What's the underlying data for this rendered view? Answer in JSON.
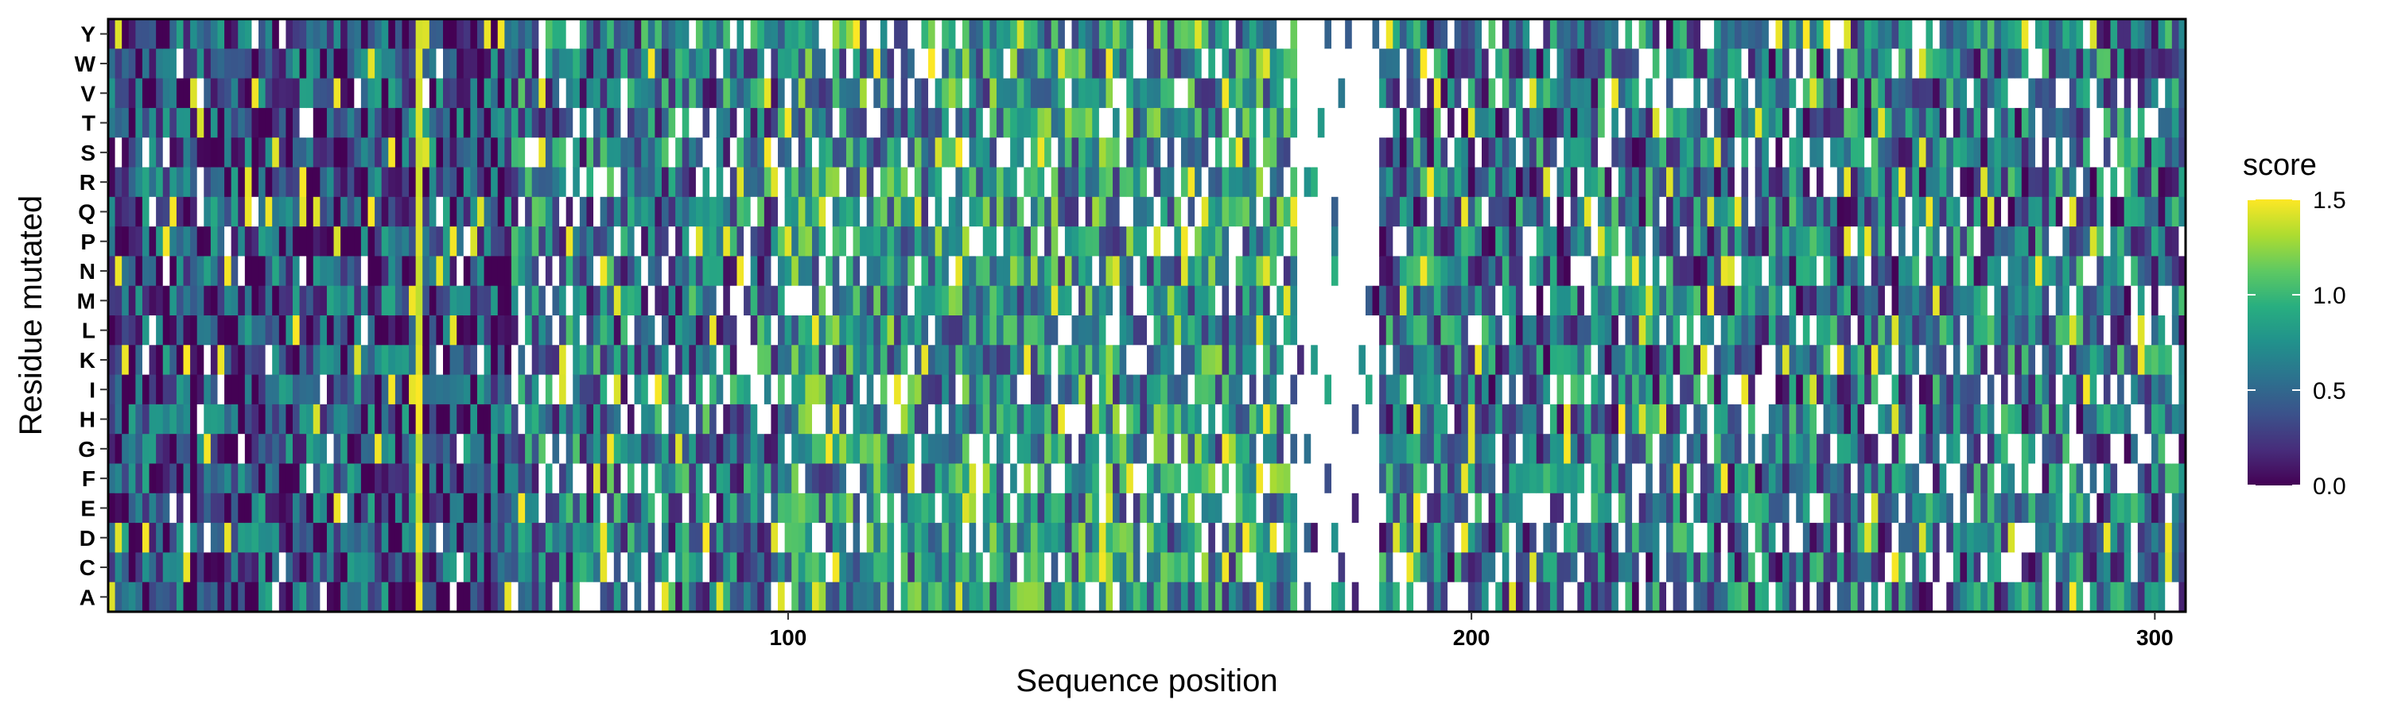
{
  "chart_data": {
    "type": "heatmap",
    "title": "",
    "xlabel": "Sequence position",
    "ylabel": "Residue mutated",
    "x_range": [
      1,
      304
    ],
    "x_ticks": [
      100,
      200,
      300
    ],
    "x_tick_labels": [
      "100",
      "200",
      "300"
    ],
    "y_categories": [
      "A",
      "C",
      "D",
      "E",
      "F",
      "G",
      "H",
      "I",
      "K",
      "L",
      "M",
      "N",
      "P",
      "Q",
      "R",
      "S",
      "T",
      "V",
      "W",
      "Y"
    ],
    "legend": {
      "title": "score",
      "position": "right",
      "range": [
        0.0,
        1.5
      ],
      "ticks": [
        0.0,
        0.5,
        1.0,
        1.5
      ],
      "tick_labels": [
        "0.0",
        "0.5",
        "1.0",
        "1.5"
      ]
    },
    "colorscale": {
      "name": "viridis",
      "stops": [
        "#440154",
        "#472d7b",
        "#3b528b",
        "#2c728e",
        "#21918c",
        "#28ae80",
        "#5ec962",
        "#addc30",
        "#fde725"
      ]
    },
    "missing_color": "#ffffff",
    "missing_regions": [
      {
        "x_start": 175,
        "x_end": 186,
        "note": "mostly missing values"
      }
    ],
    "notable_columns": [
      {
        "x": 46,
        "description": "high score column (~1.5)"
      }
    ],
    "values": "Dense matrix of 20 residues x 304 positions; individual cell values are not legible at this resolution. Values span 0.0 to 1.5, with lower scores (dark) concentrated in positions ~1-60 and ~200-300, and many missing (white) cells throughout."
  }
}
